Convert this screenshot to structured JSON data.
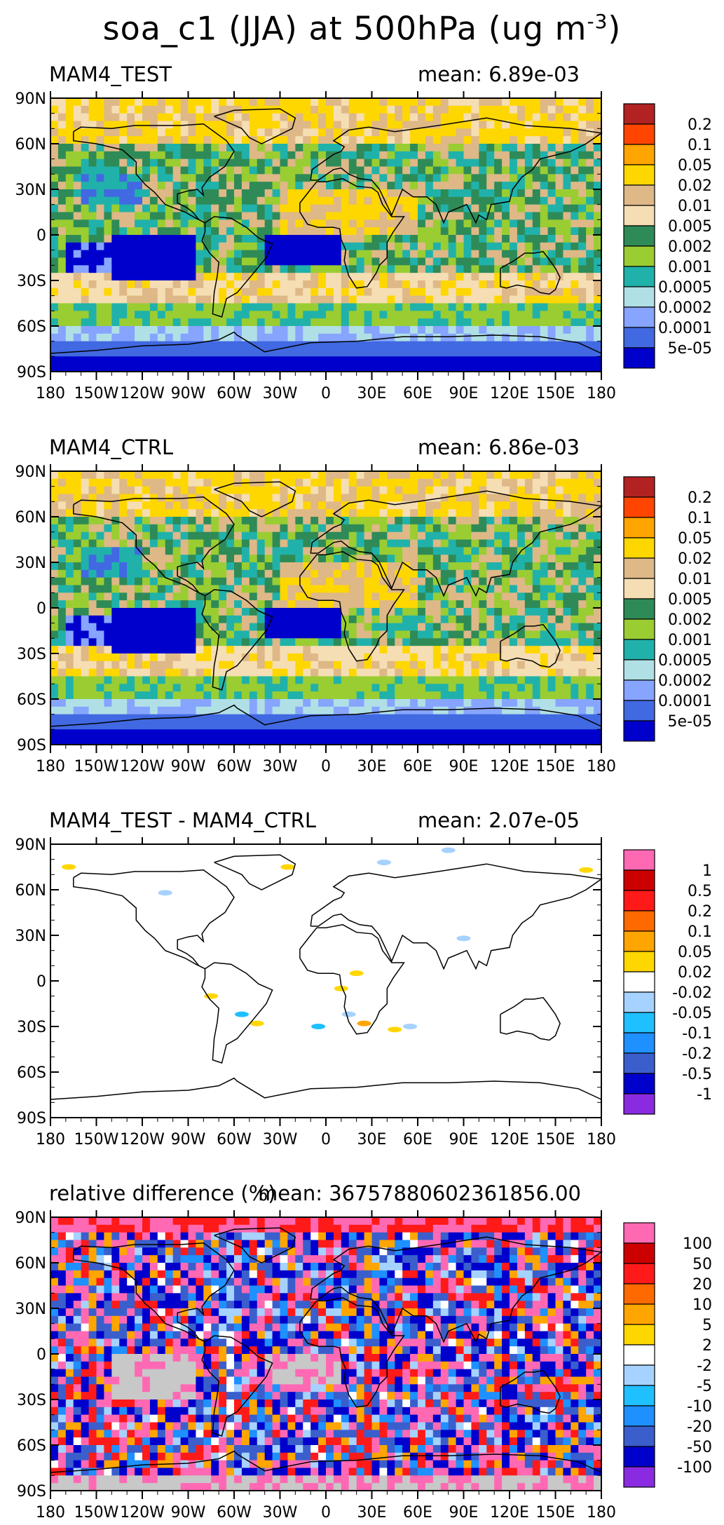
{
  "title": {
    "text": "soa_c1 (JJA) at 500hPa (ug m",
    "exponent": "-3",
    "close": ")"
  },
  "lat_ticks": [
    "90N",
    "60N",
    "30N",
    "0",
    "30S",
    "60S",
    "90S"
  ],
  "lon_ticks": [
    "180",
    "150W",
    "120W",
    "90W",
    "60W",
    "30W",
    "0",
    "30E",
    "60E",
    "90E",
    "120E",
    "150E",
    "180"
  ],
  "panels": [
    {
      "title": "MAM4_TEST",
      "mean": "mean: 6.89e-03",
      "style": "abs",
      "colorbar": {
        "labels": [
          "0.2",
          "0.1",
          "0.05",
          "0.02",
          "0.01",
          "0.005",
          "0.002",
          "0.001",
          "0.0005",
          "0.0002",
          "0.0001",
          "5e-05"
        ],
        "colors": [
          "#b22222",
          "#ff4500",
          "#ffa500",
          "#ffd700",
          "#deb887",
          "#f5deb3",
          "#2e8b57",
          "#9acd32",
          "#20b2aa",
          "#b0e0e6",
          "#87a4ff",
          "#4169e1",
          "#0000cd"
        ]
      }
    },
    {
      "title": "MAM4_CTRL",
      "mean": "mean: 6.86e-03",
      "style": "abs",
      "colorbar": {
        "labels": [
          "0.2",
          "0.1",
          "0.05",
          "0.02",
          "0.01",
          "0.005",
          "0.002",
          "0.001",
          "0.0005",
          "0.0002",
          "0.0001",
          "5e-05"
        ],
        "colors": [
          "#b22222",
          "#ff4500",
          "#ffa500",
          "#ffd700",
          "#deb887",
          "#f5deb3",
          "#2e8b57",
          "#9acd32",
          "#20b2aa",
          "#b0e0e6",
          "#87a4ff",
          "#4169e1",
          "#0000cd"
        ]
      }
    },
    {
      "title": "MAM4_TEST - MAM4_CTRL",
      "mean": "mean: 2.07e-05",
      "style": "diff",
      "colorbar": {
        "labels": [
          "1",
          "0.5",
          "0.2",
          "0.1",
          "0.05",
          "0.02",
          "-0.02",
          "-0.05",
          "-0.1",
          "-0.2",
          "-0.5",
          "-1"
        ],
        "colors": [
          "#ff69b4",
          "#cd0000",
          "#ff1a1a",
          "#ff6a00",
          "#ffa500",
          "#ffd700",
          "#ffffff",
          "#a6d2ff",
          "#1fc0ff",
          "#1e90ff",
          "#3a5fcd",
          "#0000cd",
          "#8a2be2"
        ]
      }
    },
    {
      "title": "relative difference (%)",
      "mean": "mean: 36757880602361856.00",
      "style": "rel",
      "colorbar": {
        "labels": [
          "100",
          "50",
          "20",
          "10",
          "5",
          "2",
          "-2",
          "-5",
          "-10",
          "-20",
          "-50",
          "-100"
        ],
        "colors": [
          "#ff69b4",
          "#cd0000",
          "#ff1a1a",
          "#ff6a00",
          "#ffa500",
          "#ffd700",
          "#ffffff",
          "#a6d2ff",
          "#1fc0ff",
          "#1e90ff",
          "#3a5fcd",
          "#0000cd",
          "#8a2be2"
        ]
      }
    }
  ]
}
